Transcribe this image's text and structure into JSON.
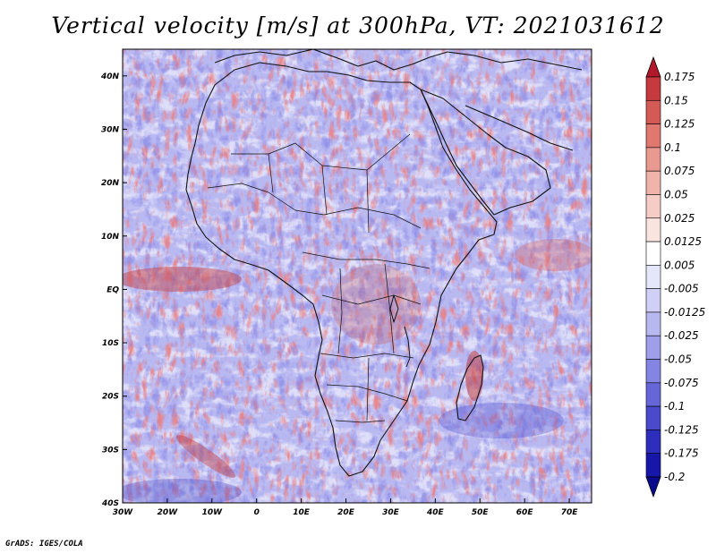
{
  "title": "Vertical velocity [m/s] at 300hPa, VT: 2021031612",
  "credit": "GrADS: IGES/COLA",
  "map": {
    "lon_range": [
      -30,
      75
    ],
    "lat_range": [
      -40,
      45
    ],
    "x_ticks": [
      "30W",
      "20W",
      "10W",
      "0",
      "10E",
      "20E",
      "30E",
      "40E",
      "50E",
      "60E",
      "70E"
    ],
    "y_ticks": [
      "40N",
      "30N",
      "20N",
      "10N",
      "EQ",
      "10S",
      "20S",
      "30S",
      "40S"
    ],
    "field": "vertical velocity (300hPa)"
  },
  "colorbar": {
    "labels": [
      "0.175",
      "0.15",
      "0.125",
      "0.1",
      "0.075",
      "0.05",
      "0.025",
      "0.0125",
      "0.005",
      "-0.005",
      "-0.0125",
      "-0.025",
      "-0.05",
      "-0.075",
      "-0.1",
      "-0.125",
      "-0.175",
      "-0.2"
    ],
    "colors": [
      "#b2182b",
      "#c43a3e",
      "#d45a56",
      "#e07870",
      "#e99a90",
      "#f0b4ab",
      "#f6ccc6",
      "#fae4e0",
      "#ffffff",
      "#e6e6fa",
      "#d0d0f6",
      "#b8b8f0",
      "#9e9eea",
      "#8484e2",
      "#6666d8",
      "#4a4acc",
      "#2e2ebe",
      "#1616a8",
      "#0a0a8c"
    ]
  }
}
